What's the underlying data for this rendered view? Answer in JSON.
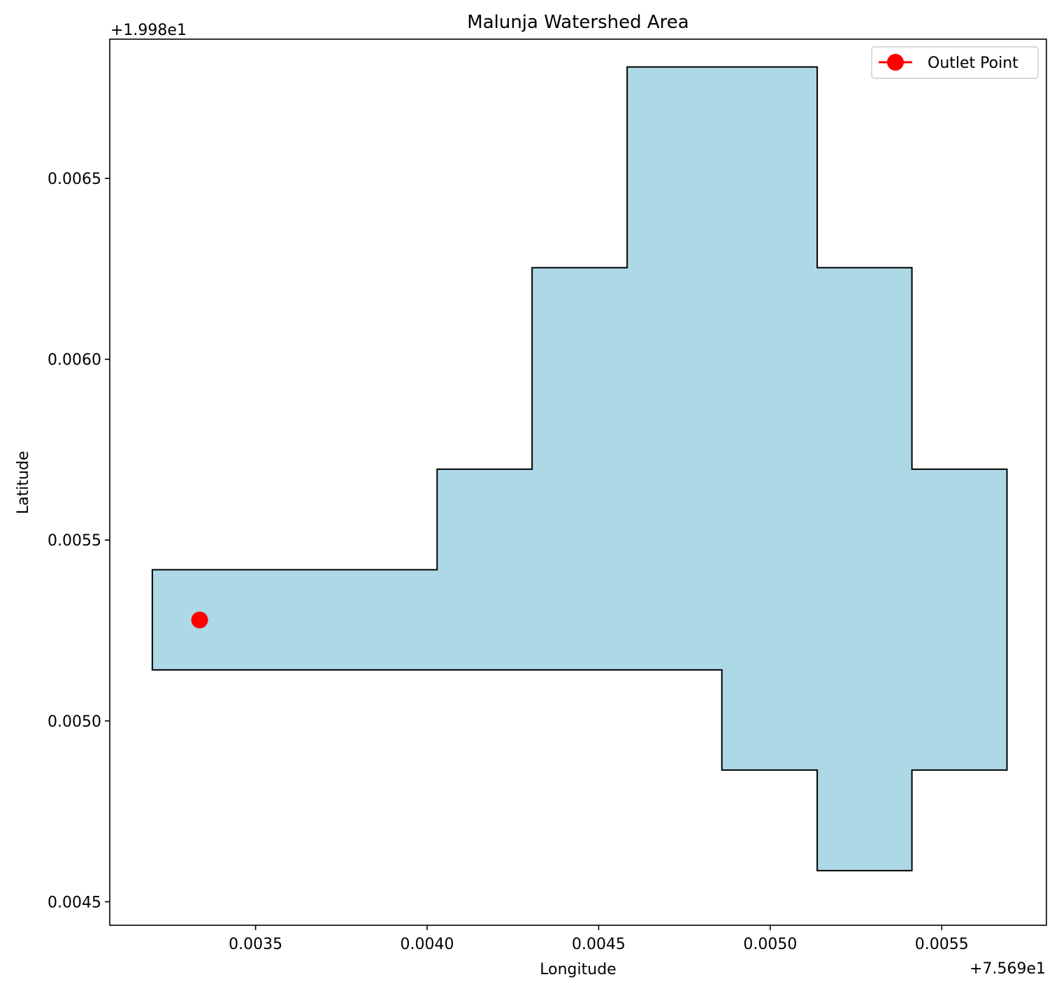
{
  "chart_data": {
    "type": "area",
    "title": "Malunja Watershed Area",
    "xlabel": "Longitude",
    "ylabel": "Latitude",
    "x_offset_label": "+7.569e1",
    "y_offset_label": "+1.998e1",
    "xlim": [
      0.003075,
      0.005805
    ],
    "ylim": [
      0.004435,
      0.006885
    ],
    "xticks": [
      0.0035,
      0.004,
      0.0045,
      0.005,
      0.0055
    ],
    "xtick_labels": [
      "0.0035",
      "0.0040",
      "0.0045",
      "0.0050",
      "0.0055"
    ],
    "yticks": [
      0.0045,
      0.005,
      0.0055,
      0.006,
      0.0065
    ],
    "ytick_labels": [
      "0.0045",
      "0.0050",
      "0.0055",
      "0.0060",
      "0.0065"
    ],
    "polygon": {
      "fill": "#add8e6",
      "stroke": "#000000",
      "points": [
        [
          0.003199,
          0.005418
        ],
        [
          0.004029,
          0.005418
        ],
        [
          0.004029,
          0.005696
        ],
        [
          0.004306,
          0.005696
        ],
        [
          0.004306,
          0.006253
        ],
        [
          0.004583,
          0.006253
        ],
        [
          0.004583,
          0.006808
        ],
        [
          0.005137,
          0.006808
        ],
        [
          0.005137,
          0.006253
        ],
        [
          0.005413,
          0.006253
        ],
        [
          0.005413,
          0.005696
        ],
        [
          0.00569,
          0.005696
        ],
        [
          0.00569,
          0.004864
        ],
        [
          0.005413,
          0.004864
        ],
        [
          0.005413,
          0.004586
        ],
        [
          0.005137,
          0.004586
        ],
        [
          0.005137,
          0.004864
        ],
        [
          0.004859,
          0.004864
        ],
        [
          0.004859,
          0.005141
        ],
        [
          0.003199,
          0.005141
        ]
      ]
    },
    "series": [
      {
        "name": "Outlet Point",
        "x": [
          0.003337
        ],
        "y": [
          0.005279
        ],
        "color": "#ff0000"
      }
    ],
    "legend": {
      "position": "top-right",
      "entries": [
        "Outlet Point"
      ]
    },
    "grid": false
  }
}
